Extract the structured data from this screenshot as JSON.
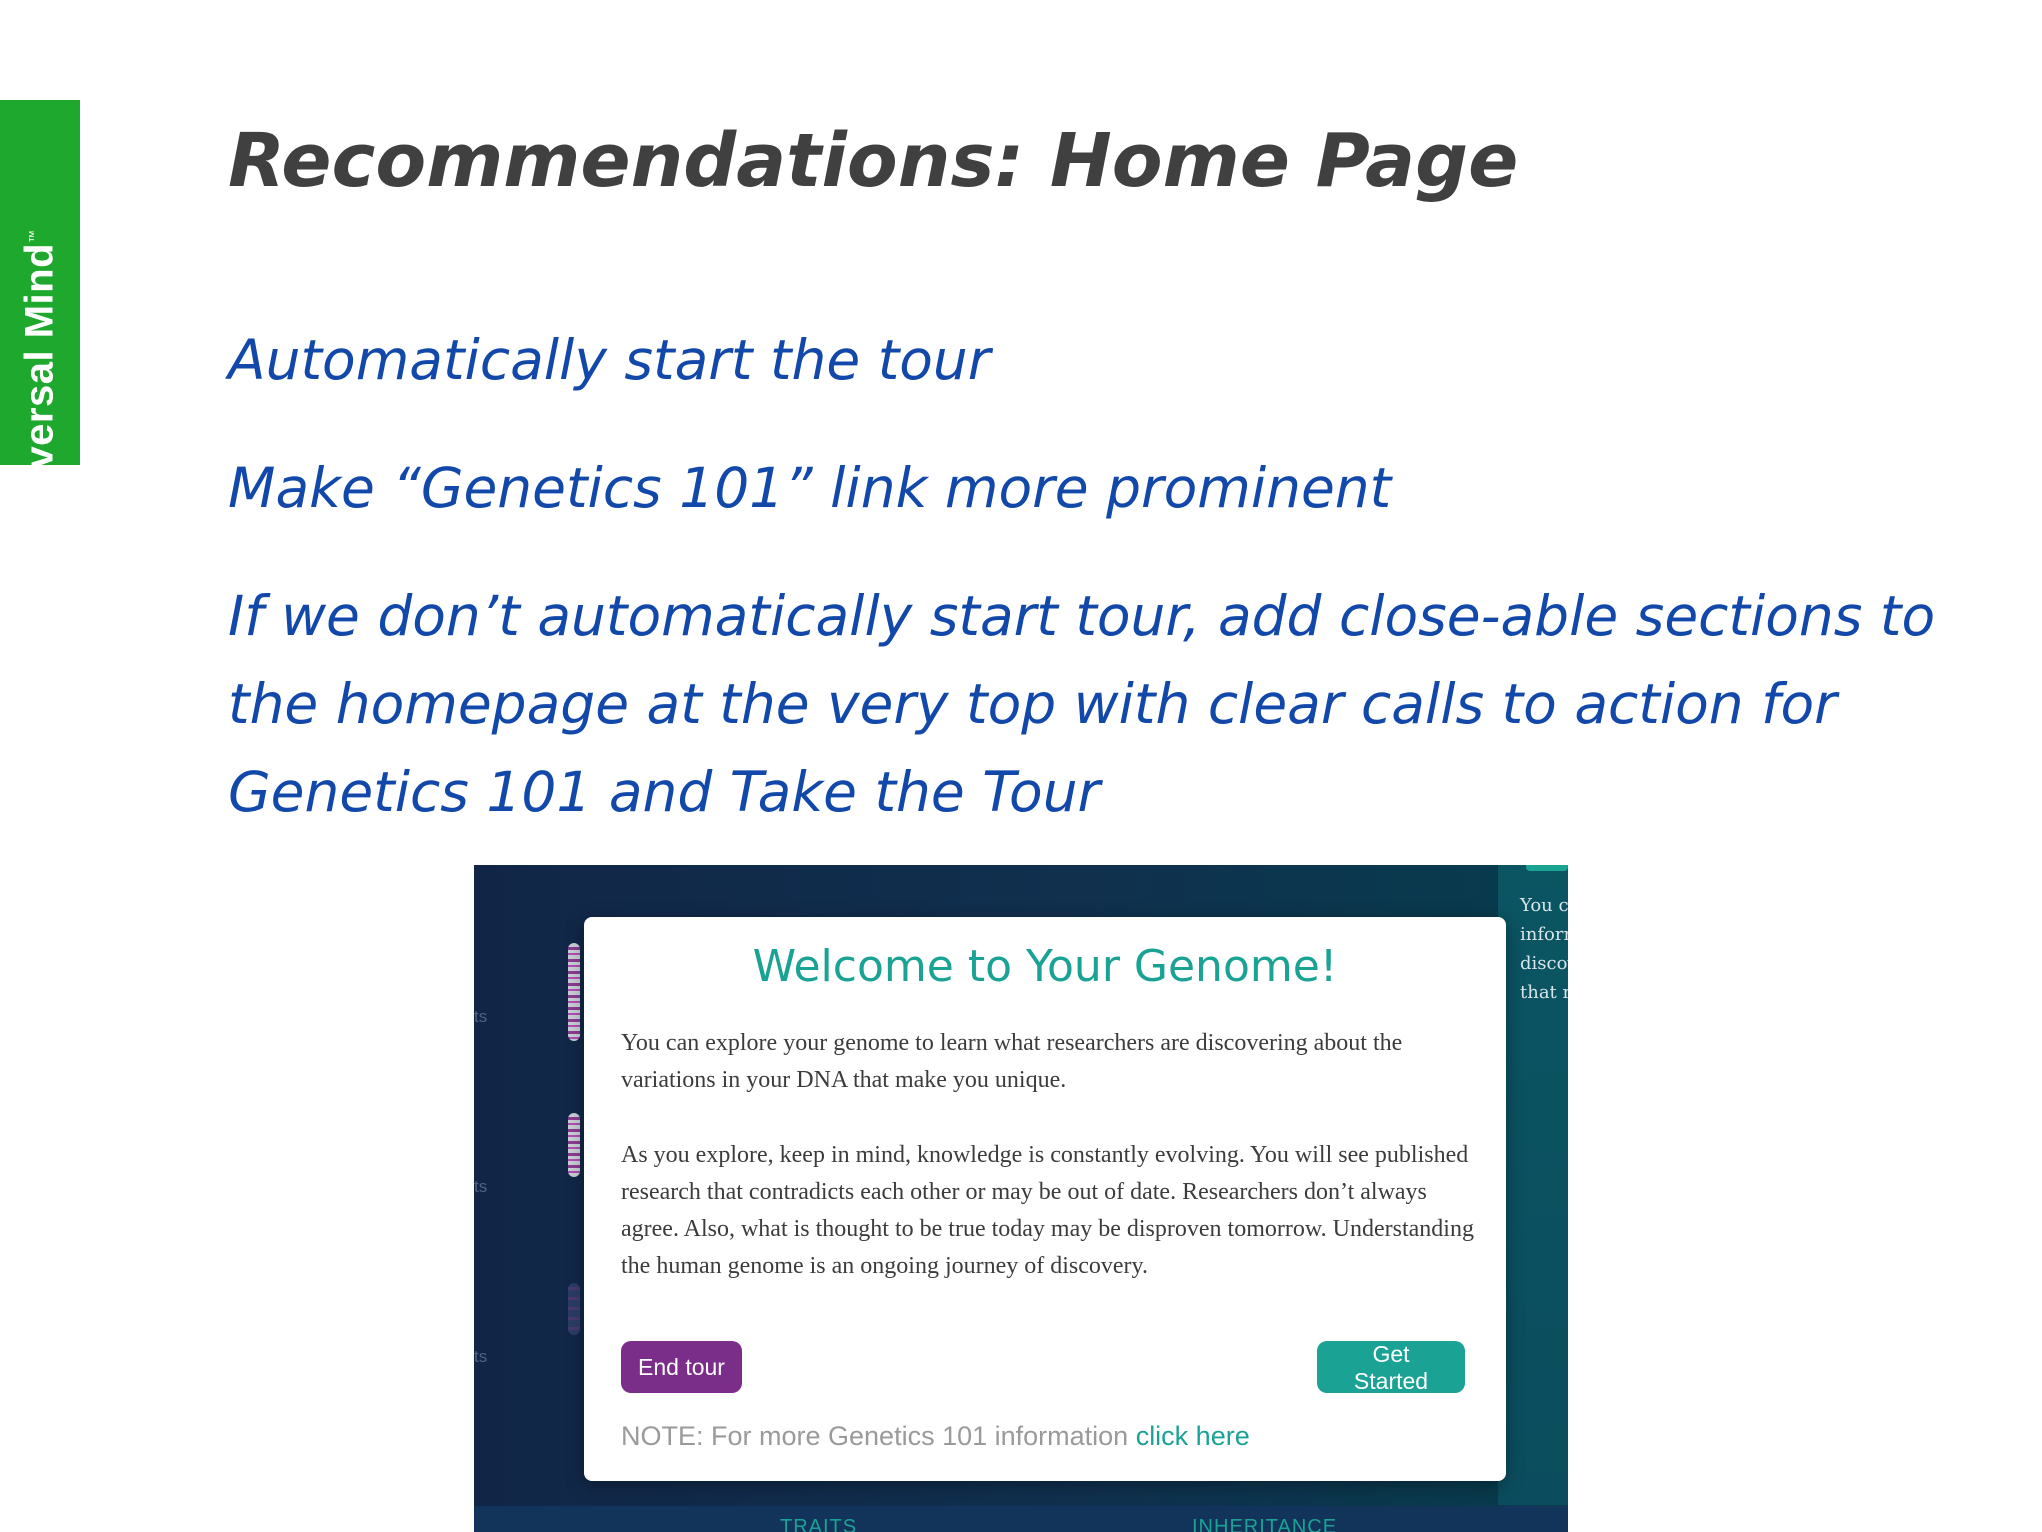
{
  "brand": {
    "name": "Universal Mind",
    "trademark": "™",
    "color": "#1fa82e"
  },
  "slide": {
    "title": "Recommendations: Home Page",
    "bullets": [
      "Automatically start the tour",
      "Make “Genetics 101” link more prominent",
      "If we don’t automatically start tour, add close-able sections to the homepage at the very top with clear calls to action for Genetics 101 and Take the Tour"
    ],
    "bullet_color": "#1148aa"
  },
  "screenshot": {
    "side_fragments": [
      "ts",
      "ts",
      "ts"
    ],
    "right_panel_lines": [
      "You c",
      "inforn",
      "discov",
      "that m"
    ],
    "bottom_tabs": [
      "TRAITS",
      "INHERITANCE"
    ],
    "modal": {
      "title": "Welcome to Your Genome!",
      "paragraph1": "You can explore your genome to learn what researchers are discovering about the variations in your DNA that make you unique.",
      "paragraph2": "As you explore, keep in mind, knowledge is constantly evolving. You will see published research that contradicts each other or may be out of date. Researchers don’t always agree. Also, what is thought to be true today may be disproven tomorrow. Understanding the human genome is an ongoing journey of discovery.",
      "end_tour_label": "End tour",
      "get_started_label": "Get Started",
      "note_text": "NOTE: For more Genetics 101 information ",
      "note_link": "click here",
      "accent_color": "#1aa394",
      "end_tour_color": "#7b2d8a"
    }
  }
}
